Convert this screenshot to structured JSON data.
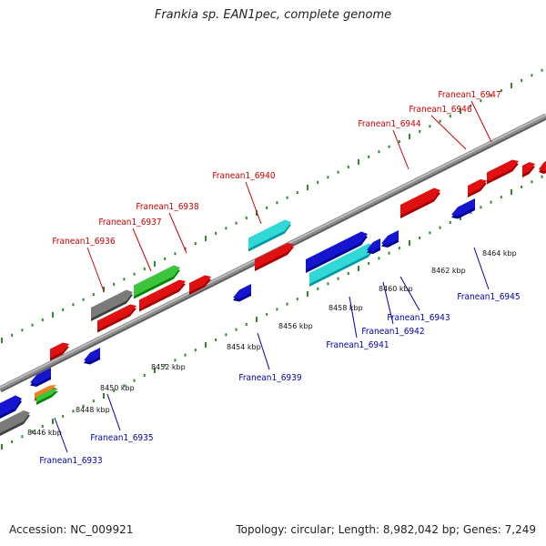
{
  "title": "Frankia sp. EAN1pec, complete genome",
  "footer": {
    "accession": "Accession: NC_009921",
    "info": "Topology: circular; Length: 8,982,042 bp; Genes: 7,249"
  },
  "colors": {
    "top_strand_label": "#cc0000",
    "bottom_strand_label": "#0000aa",
    "red": "#e01010",
    "blue": "#1515d0",
    "green": "#3cc43c",
    "gray": "#7a7a7a",
    "cyan": "#30d8d8",
    "orange": "#f08020",
    "backbone": "#8c8c8c",
    "dots": "#2a8a2a"
  },
  "scale_labels": [
    "8446 kbp",
    "8448 kbp",
    "8450 kbp",
    "8452 kbp",
    "8454 kbp",
    "8456 kbp",
    "8458 kbp",
    "8460 kbp",
    "8462 kbp",
    "8464 kbp"
  ],
  "labeled_genes_top": [
    "Franean1_6936",
    "Franean1_6937",
    "Franean1_6938",
    "Franean1_6940",
    "Franean1_6944",
    "Franean1_6946",
    "Franean1_6947"
  ],
  "labeled_genes_bottom": [
    "Franean1_6933",
    "Franean1_6935",
    "Franean1_6939",
    "Franean1_6941",
    "Franean1_6942",
    "Franean1_6943",
    "Franean1_6945"
  ]
}
